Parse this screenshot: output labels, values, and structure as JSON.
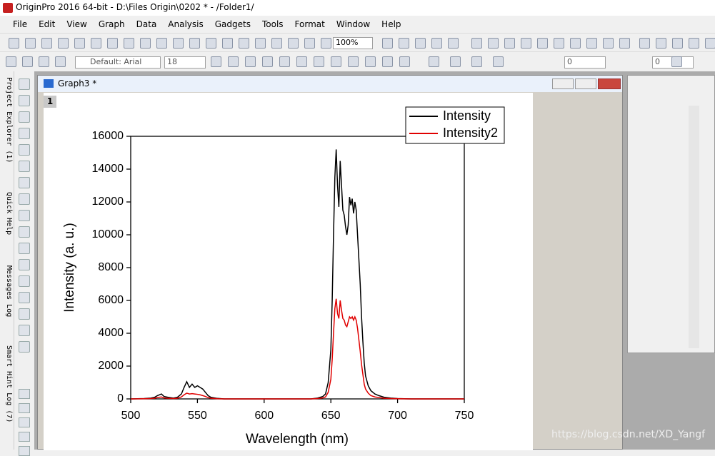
{
  "app": {
    "title": "OriginPro 2016 64-bit - D:\\Files Origin\\0202 * - /Folder1/",
    "menu": [
      "File",
      "Edit",
      "View",
      "Graph",
      "Data",
      "Analysis",
      "Gadgets",
      "Tools",
      "Format",
      "Window",
      "Help"
    ],
    "toolbar": {
      "zoom": "100%",
      "font": "Default: Arial",
      "font_size": "18",
      "line_value": "0",
      "fill_value": "0"
    }
  },
  "side_tabs": [
    "Project Explorer (1)",
    "Quick Help",
    "Messages Log",
    "Smart Hint Log (7)"
  ],
  "graph_window": {
    "title": "Graph3 *",
    "layer": "1"
  },
  "watermark": "https://blog.csdn.net/XD_Yangf",
  "chart_data": {
    "type": "line",
    "xlabel": "Wavelength (nm)",
    "ylabel": "Intensity (a. u.)",
    "xlim": [
      500,
      750
    ],
    "xticks": [
      500,
      550,
      600,
      650,
      700,
      750
    ],
    "ylim": [
      0,
      16000
    ],
    "yticks": [
      0,
      2000,
      4000,
      6000,
      8000,
      10000,
      12000,
      14000,
      16000
    ],
    "legend": "top-right",
    "x": [
      500,
      505,
      510,
      515,
      518,
      520,
      523,
      525,
      528,
      532,
      535,
      538,
      540,
      542,
      544,
      546,
      548,
      550,
      552,
      554,
      556,
      558,
      560,
      565,
      570,
      600,
      635,
      640,
      644,
      646,
      648,
      650,
      651,
      652,
      653,
      654,
      655,
      656,
      657,
      658,
      659,
      660,
      661,
      662,
      663,
      664,
      665,
      666,
      667,
      668,
      669,
      670,
      671,
      672,
      673,
      674,
      675,
      676,
      678,
      680,
      683,
      686,
      690,
      695,
      700,
      710,
      750
    ],
    "series": [
      {
        "name": "Intensity",
        "color": "#000000",
        "values": [
          0,
          10,
          20,
          50,
          100,
          200,
          300,
          150,
          100,
          50,
          100,
          300,
          700,
          1050,
          700,
          900,
          700,
          800,
          700,
          600,
          400,
          200,
          100,
          30,
          0,
          0,
          0,
          50,
          150,
          300,
          1000,
          3000,
          6000,
          10000,
          13500,
          15200,
          13000,
          11700,
          14500,
          13000,
          11500,
          11200,
          10500,
          10000,
          10600,
          12300,
          11800,
          12200,
          11300,
          12000,
          11500,
          10000,
          8500,
          7000,
          5000,
          3500,
          2200,
          1400,
          800,
          500,
          300,
          200,
          100,
          50,
          20,
          0,
          0
        ]
      },
      {
        "name": "Intensity2",
        "color": "#e00000",
        "values": [
          0,
          5,
          10,
          20,
          40,
          80,
          120,
          60,
          40,
          20,
          40,
          120,
          250,
          350,
          300,
          320,
          300,
          280,
          250,
          200,
          150,
          80,
          40,
          10,
          0,
          0,
          0,
          20,
          60,
          120,
          400,
          1200,
          2400,
          4000,
          5500,
          6100,
          5200,
          4900,
          6000,
          5400,
          4900,
          4800,
          4500,
          4400,
          4700,
          5000,
          4900,
          5000,
          4800,
          5000,
          4800,
          4300,
          3600,
          2900,
          2100,
          1500,
          900,
          600,
          350,
          200,
          120,
          80,
          40,
          20,
          10,
          0,
          0
        ]
      }
    ]
  }
}
